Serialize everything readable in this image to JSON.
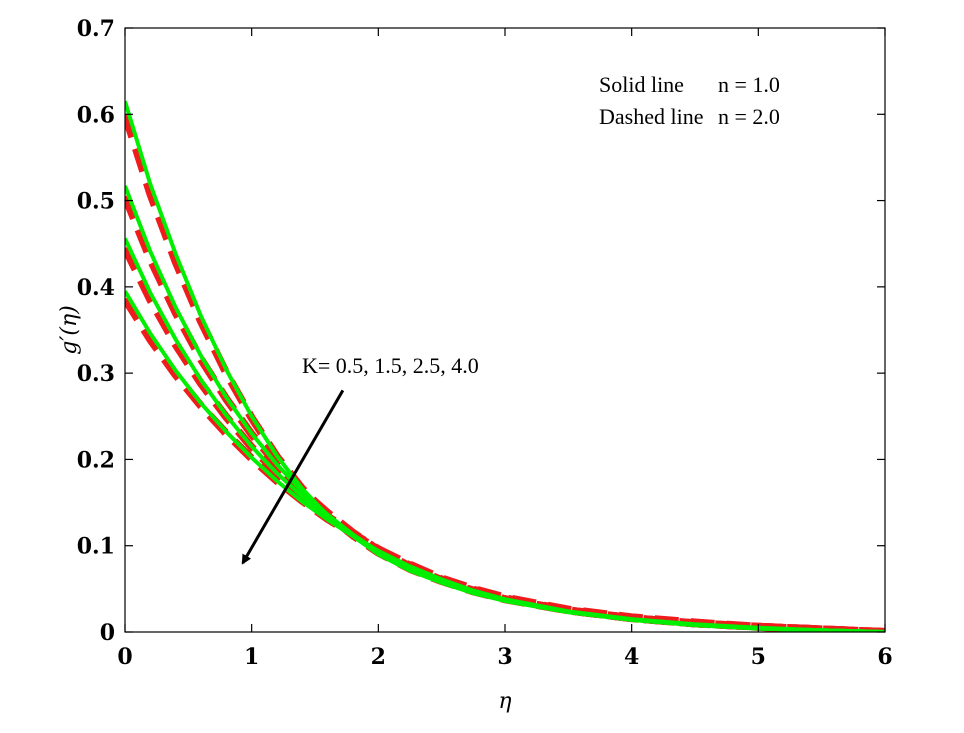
{
  "chart_data": {
    "type": "line",
    "xlabel": "η",
    "ylabel": "g′(η)",
    "xlim": [
      0,
      6
    ],
    "ylim": [
      0,
      0.7
    ],
    "x_ticks": [
      "0",
      "1",
      "2",
      "3",
      "4",
      "5",
      "6"
    ],
    "y_ticks": [
      "0",
      "0.1",
      "0.2",
      "0.3",
      "0.4",
      "0.5",
      "0.6",
      "0.7"
    ],
    "legend": {
      "placement": "top-right",
      "solid_label": "Solid line",
      "solid_value": "n = 1.0",
      "dashed_label": "Dashed line",
      "dashed_value": "n = 2.0"
    },
    "annotation": {
      "text": "K= 0.5, 1.5, 2.5, 4.0",
      "arrow_from": [
        1.72,
        0.28
      ],
      "arrow_to": [
        0.93,
        0.08
      ]
    },
    "colors": {
      "solid": "#00ee00",
      "dashed": "#ee1c1c"
    },
    "x": [
      0,
      0.2,
      0.4,
      0.6,
      0.8,
      1.0,
      1.2,
      1.4,
      1.6,
      1.8,
      2.0,
      2.25,
      2.5,
      2.75,
      3.0,
      3.5,
      4.0,
      4.5,
      5.0,
      5.5,
      6.0
    ],
    "series": [
      {
        "style": "solid",
        "K": "0.5",
        "values": [
          0.615,
          0.519,
          0.438,
          0.366,
          0.304,
          0.25,
          0.204,
          0.166,
          0.135,
          0.111,
          0.09,
          0.071,
          0.057,
          0.045,
          0.036,
          0.023,
          0.014,
          0.008,
          0.004,
          0.002,
          0.0
        ]
      },
      {
        "style": "solid",
        "K": "1.5",
        "values": [
          0.517,
          0.441,
          0.376,
          0.32,
          0.272,
          0.23,
          0.194,
          0.163,
          0.136,
          0.113,
          0.093,
          0.073,
          0.058,
          0.046,
          0.036,
          0.023,
          0.014,
          0.008,
          0.004,
          0.002,
          0.0
        ]
      },
      {
        "style": "solid",
        "K": "2.5",
        "values": [
          0.456,
          0.393,
          0.339,
          0.292,
          0.251,
          0.215,
          0.184,
          0.157,
          0.133,
          0.112,
          0.094,
          0.075,
          0.059,
          0.047,
          0.037,
          0.023,
          0.014,
          0.008,
          0.004,
          0.002,
          0.0
        ]
      },
      {
        "style": "solid",
        "K": "4.0",
        "values": [
          0.395,
          0.346,
          0.303,
          0.265,
          0.232,
          0.202,
          0.175,
          0.151,
          0.13,
          0.111,
          0.094,
          0.076,
          0.061,
          0.048,
          0.038,
          0.024,
          0.015,
          0.009,
          0.005,
          0.002,
          0.0
        ]
      },
      {
        "style": "dashed",
        "K": "0.5",
        "values": [
          0.6,
          0.508,
          0.429,
          0.36,
          0.3,
          0.248,
          0.203,
          0.166,
          0.136,
          0.112,
          0.092,
          0.073,
          0.059,
          0.047,
          0.038,
          0.025,
          0.016,
          0.01,
          0.006,
          0.003,
          0.0
        ]
      },
      {
        "style": "dashed",
        "K": "1.5",
        "values": [
          0.505,
          0.432,
          0.37,
          0.316,
          0.27,
          0.229,
          0.194,
          0.164,
          0.138,
          0.115,
          0.095,
          0.076,
          0.06,
          0.048,
          0.038,
          0.025,
          0.016,
          0.01,
          0.006,
          0.003,
          0.0
        ]
      },
      {
        "style": "dashed",
        "K": "2.5",
        "values": [
          0.445,
          0.385,
          0.333,
          0.288,
          0.249,
          0.214,
          0.184,
          0.157,
          0.134,
          0.114,
          0.096,
          0.077,
          0.061,
          0.049,
          0.039,
          0.025,
          0.016,
          0.01,
          0.006,
          0.003,
          0.0
        ]
      },
      {
        "style": "dashed",
        "K": "4.0",
        "values": [
          0.386,
          0.339,
          0.298,
          0.262,
          0.23,
          0.201,
          0.175,
          0.152,
          0.131,
          0.113,
          0.096,
          0.078,
          0.062,
          0.05,
          0.04,
          0.026,
          0.017,
          0.011,
          0.006,
          0.003,
          0.0
        ]
      }
    ]
  }
}
